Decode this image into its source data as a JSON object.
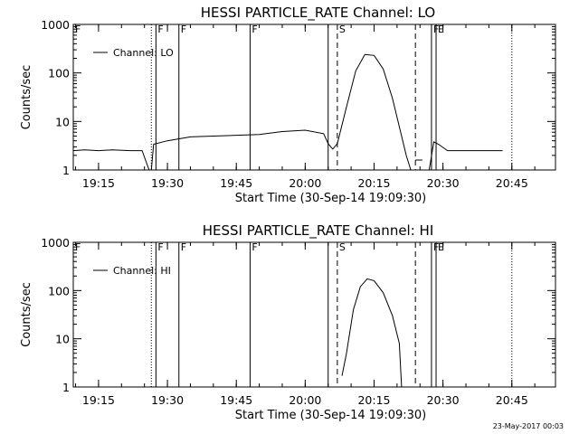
{
  "footer": {
    "timestamp": "23-May-2017 00:03"
  },
  "chart_data": [
    {
      "type": "line",
      "title": "HESSI PARTICLE_RATE Channel: LO",
      "xlabel": "Start Time (30-Sep-14 19:09:30)",
      "ylabel": "Counts/sec",
      "yscale": "log",
      "xlim": [
        "19:09:30",
        "20:54:30"
      ],
      "ylim": [
        1,
        1000
      ],
      "x_ticks": [
        "19:15",
        "19:30",
        "19:45",
        "20:00",
        "20:15",
        "20:30",
        "20:45"
      ],
      "y_ticks": [
        "1",
        "10",
        "100",
        "1000"
      ],
      "legend": {
        "position": "top-left",
        "entries": [
          "Channel: LO"
        ]
      },
      "event_markers": [
        {
          "time": "19:09:30",
          "style": "dotted",
          "label": "F"
        },
        {
          "time": "19:26:30",
          "style": "dotted",
          "label": ""
        },
        {
          "time": "19:27:30",
          "style": "solid",
          "label": "F"
        },
        {
          "time": "19:32:30",
          "style": "solid",
          "label": "F"
        },
        {
          "time": "19:48:00",
          "style": "solid",
          "label": "F"
        },
        {
          "time": "20:05:00",
          "style": "solid",
          "label": ""
        },
        {
          "time": "20:07:00",
          "style": "dashed",
          "label": "S"
        },
        {
          "time": "20:24:00",
          "style": "dashed",
          "label": ""
        },
        {
          "time": "20:27:30",
          "style": "solid",
          "label": "F"
        },
        {
          "time": "20:28:30",
          "style": "solid",
          "label": "E"
        },
        {
          "time": "20:45:00",
          "style": "dotted",
          "label": ""
        }
      ],
      "series": [
        {
          "name": "Channel: LO",
          "segments": [
            [
              [
                "19:09:30",
                2.5
              ],
              [
                "19:12:00",
                2.6
              ],
              [
                "19:15:00",
                2.5
              ],
              [
                "19:18:00",
                2.6
              ],
              [
                "19:22:00",
                2.5
              ],
              [
                "19:24:30",
                2.5
              ],
              [
                "19:26:00",
                1.0
              ]
            ],
            [
              [
                "19:26:30",
                1.0
              ],
              [
                "19:27:00",
                3.4
              ],
              [
                "19:30:00",
                4.0
              ],
              [
                "19:35:00",
                4.8
              ],
              [
                "19:40:00",
                5.0
              ],
              [
                "19:45:00",
                5.2
              ],
              [
                "19:50:00",
                5.4
              ],
              [
                "19:55:00",
                6.2
              ],
              [
                "20:00:00",
                6.6
              ],
              [
                "20:04:00",
                5.6
              ],
              [
                "20:05:00",
                3.5
              ],
              [
                "20:06:00",
                2.7
              ],
              [
                "20:07:00",
                3.5
              ],
              [
                "20:09:00",
                20
              ],
              [
                "20:11:00",
                110
              ],
              [
                "20:13:00",
                240
              ],
              [
                "20:15:00",
                230
              ],
              [
                "20:17:00",
                120
              ],
              [
                "20:19:00",
                30
              ],
              [
                "20:21:00",
                5
              ],
              [
                "20:22:00",
                2
              ],
              [
                "20:23:00",
                1.0
              ]
            ],
            [
              [
                "20:24:00",
                1.6
              ],
              [
                "20:25:30",
                1.6
              ]
            ],
            [
              [
                "20:27:00",
                1.0
              ],
              [
                "20:28:00",
                3.8
              ],
              [
                "20:29:00",
                3.4
              ],
              [
                "20:31:00",
                2.5
              ],
              [
                "20:35:00",
                2.5
              ],
              [
                "20:40:00",
                2.5
              ],
              [
                "20:43:00",
                2.5
              ]
            ]
          ]
        }
      ]
    },
    {
      "type": "line",
      "title": "HESSI PARTICLE_RATE Channel: HI",
      "xlabel": "Start Time (30-Sep-14 19:09:30)",
      "ylabel": "Counts/sec",
      "yscale": "log",
      "xlim": [
        "19:09:30",
        "20:54:30"
      ],
      "ylim": [
        1,
        1000
      ],
      "x_ticks": [
        "19:15",
        "19:30",
        "19:45",
        "20:00",
        "20:15",
        "20:30",
        "20:45"
      ],
      "y_ticks": [
        "1",
        "10",
        "100",
        "1000"
      ],
      "legend": {
        "position": "top-left",
        "entries": [
          "Channel: HI"
        ]
      },
      "event_markers": [
        {
          "time": "19:09:30",
          "style": "dotted",
          "label": "F"
        },
        {
          "time": "19:26:30",
          "style": "dotted",
          "label": ""
        },
        {
          "time": "19:27:30",
          "style": "solid",
          "label": "F"
        },
        {
          "time": "19:32:30",
          "style": "solid",
          "label": "F"
        },
        {
          "time": "19:48:00",
          "style": "solid",
          "label": "F"
        },
        {
          "time": "20:05:00",
          "style": "solid",
          "label": ""
        },
        {
          "time": "20:07:00",
          "style": "dashed",
          "label": "S"
        },
        {
          "time": "20:24:00",
          "style": "dashed",
          "label": ""
        },
        {
          "time": "20:27:30",
          "style": "solid",
          "label": "F"
        },
        {
          "time": "20:28:30",
          "style": "solid",
          "label": "E"
        },
        {
          "time": "20:45:00",
          "style": "dotted",
          "label": ""
        }
      ],
      "series": [
        {
          "name": "Channel: HI",
          "segments": [
            [
              [
                "20:08:00",
                1.7
              ],
              [
                "20:09:00",
                5
              ],
              [
                "20:10:30",
                40
              ],
              [
                "20:12:00",
                120
              ],
              [
                "20:13:30",
                175
              ],
              [
                "20:15:00",
                160
              ],
              [
                "20:17:00",
                90
              ],
              [
                "20:19:00",
                30
              ],
              [
                "20:20:30",
                8
              ],
              [
                "20:21:00",
                1.0
              ]
            ]
          ]
        }
      ]
    }
  ]
}
